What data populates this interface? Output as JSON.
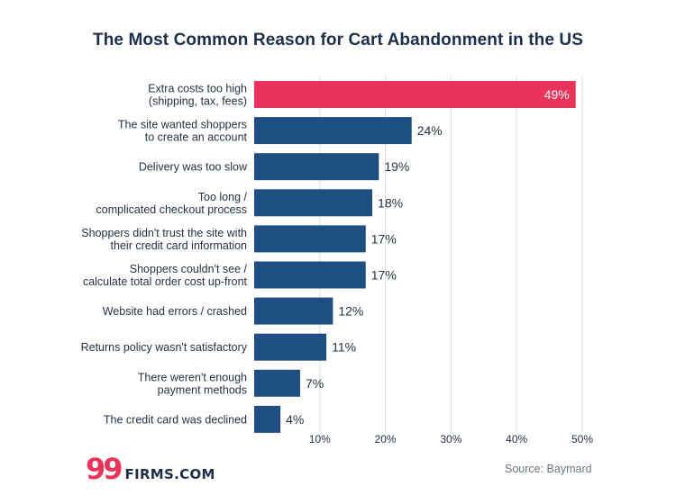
{
  "chart_data": {
    "type": "bar",
    "orientation": "horizontal",
    "title": "The Most Common Reason for Cart Abandonment in the US",
    "categories": [
      [
        "Extra costs too high",
        "(shipping, tax, fees)"
      ],
      [
        "The site wanted shoppers",
        "to create an account"
      ],
      [
        "Delivery was too slow"
      ],
      [
        "Too long /",
        "complicated checkout process"
      ],
      [
        "Shoppers didn't trust the site with",
        "their credit card information"
      ],
      [
        "Shoppers couldn't see /",
        "calculate total order cost up-front"
      ],
      [
        "Website had errors / crashed"
      ],
      [
        "Returns policy wasn't satisfactory"
      ],
      [
        "There weren't enough",
        "payment methods"
      ],
      [
        "The credit card was declined"
      ]
    ],
    "values": [
      49,
      24,
      19,
      18,
      17,
      17,
      12,
      11,
      7,
      4
    ],
    "value_labels": [
      "49%",
      "24%",
      "19%",
      "18%",
      "17%",
      "17%",
      "12%",
      "11%",
      "7%",
      "4%"
    ],
    "xticks": [
      10,
      20,
      30,
      40,
      50
    ],
    "xtick_labels": [
      "10%",
      "20%",
      "30%",
      "40%",
      "50%"
    ],
    "xlim": [
      0,
      50
    ],
    "grid": true,
    "highlight_index": 0,
    "colors": {
      "highlight": "#e8335b",
      "bar": "#1f4e82",
      "grid": "#d9dde3",
      "text": "#243246"
    }
  },
  "footer": {
    "logo_mark": "99",
    "logo_text": "FIRMS.COM",
    "source": "Source: Baymard"
  }
}
